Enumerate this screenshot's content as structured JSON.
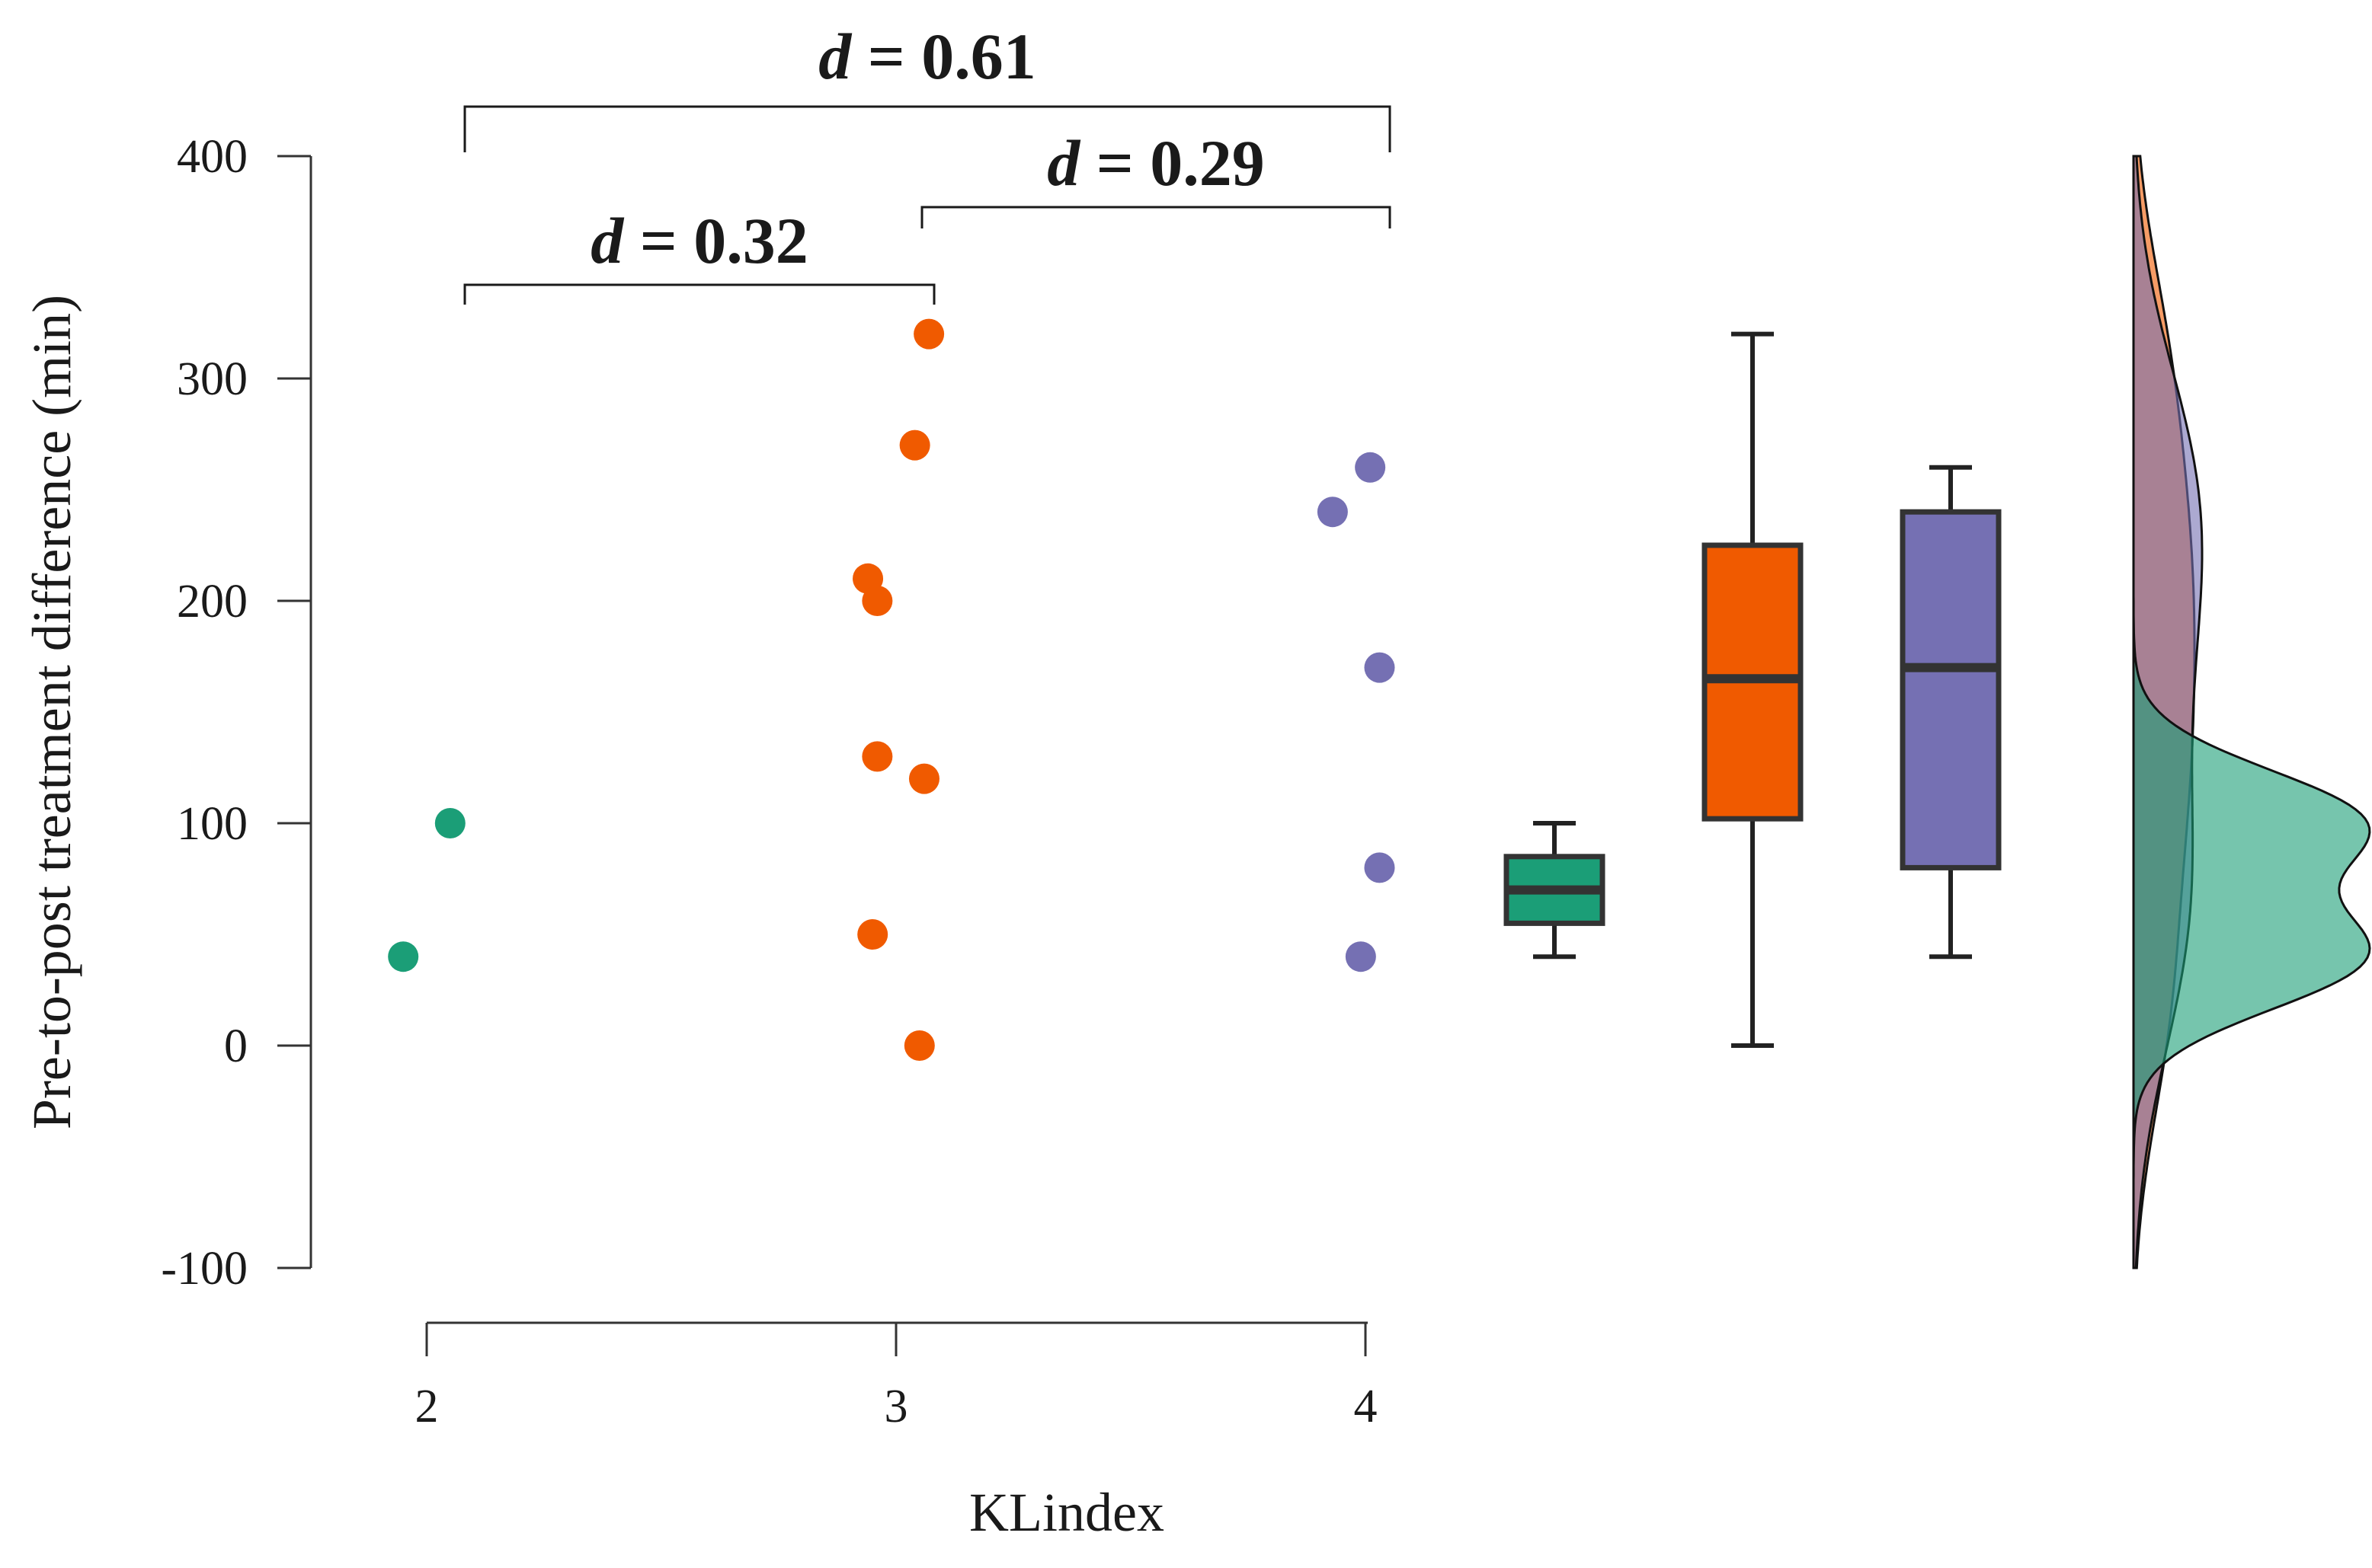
{
  "chart_data": {
    "type": "raincloud",
    "xlabel": "KLindex",
    "ylabel": "Pre-to-post treatment difference (min)",
    "ylim": [
      -100,
      400
    ],
    "yticks": [
      -100,
      0,
      100,
      200,
      300,
      400
    ],
    "categories": [
      "2",
      "3",
      "4"
    ],
    "series": [
      {
        "name": "2",
        "color": "#1b9e77",
        "points": [
          {
            "x": 1.95,
            "y": 40
          },
          {
            "x": 2.05,
            "y": 100
          }
        ],
        "box": {
          "min": 40,
          "q1": 55,
          "median": 70,
          "q3": 85,
          "max": 100
        }
      },
      {
        "name": "3",
        "color": "#f05a00",
        "points": [
          {
            "x": 3.07,
            "y": 320
          },
          {
            "x": 3.04,
            "y": 270
          },
          {
            "x": 2.94,
            "y": 210
          },
          {
            "x": 2.96,
            "y": 200
          },
          {
            "x": 2.96,
            "y": 130
          },
          {
            "x": 3.06,
            "y": 120
          },
          {
            "x": 2.95,
            "y": 50
          },
          {
            "x": 3.05,
            "y": 0
          }
        ],
        "box": {
          "min": 0,
          "q1": 102,
          "median": 165,
          "q3": 225,
          "max": 320
        }
      },
      {
        "name": "4",
        "color": "#7570b3",
        "points": [
          {
            "x": 4.01,
            "y": 260
          },
          {
            "x": 3.93,
            "y": 240
          },
          {
            "x": 4.03,
            "y": 170
          },
          {
            "x": 4.03,
            "y": 80
          },
          {
            "x": 3.99,
            "y": 40
          }
        ],
        "box": {
          "min": 40,
          "q1": 80,
          "median": 170,
          "q3": 240,
          "max": 260
        }
      }
    ],
    "comparisons": [
      {
        "from": "2",
        "to": "4",
        "prefix": "d",
        "text": " = 0.61"
      },
      {
        "from": "3",
        "to": "4",
        "prefix": "d",
        "text": " = 0.29"
      },
      {
        "from": "2",
        "to": "3",
        "prefix": "d",
        "text": " = 0.32"
      }
    ]
  }
}
